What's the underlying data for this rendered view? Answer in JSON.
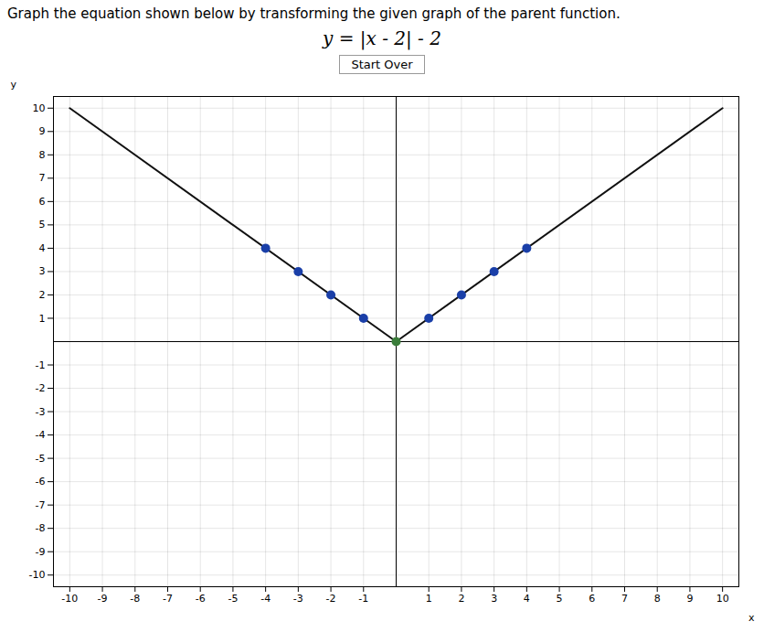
{
  "chart_data": {
    "type": "line",
    "title": "Graph the equation shown below by transforming the given graph of the parent function.",
    "subtitle": "y = |x - 2| - 2",
    "annotations": [
      "Start Over"
    ],
    "xlabel": "x",
    "ylabel": "y",
    "xlim": [
      -10.5,
      10.5
    ],
    "ylim": [
      -10.5,
      10.5
    ],
    "xticks": [
      -10,
      -9,
      -8,
      -7,
      -6,
      -5,
      -4,
      -3,
      -2,
      -1,
      1,
      2,
      3,
      4,
      5,
      6,
      7,
      8,
      9,
      10
    ],
    "yticks": [
      -10,
      -9,
      -8,
      -7,
      -6,
      -5,
      -4,
      -3,
      -2,
      -1,
      1,
      2,
      3,
      4,
      5,
      6,
      7,
      8,
      9,
      10
    ],
    "grid": true,
    "series": [
      {
        "type": "line",
        "color": "#111111",
        "x": [
          -10,
          0,
          10
        ],
        "values": [
          10,
          0,
          10
        ]
      },
      {
        "type": "scatter",
        "color": "#1a3fa8",
        "x": [
          -4,
          -3,
          -2,
          -1,
          1,
          2,
          3,
          4
        ],
        "values": [
          4,
          3,
          2,
          1,
          1,
          2,
          3,
          4
        ]
      },
      {
        "type": "scatter",
        "color": "#3a7d3a",
        "x": [
          0
        ],
        "values": [
          0
        ]
      }
    ]
  }
}
